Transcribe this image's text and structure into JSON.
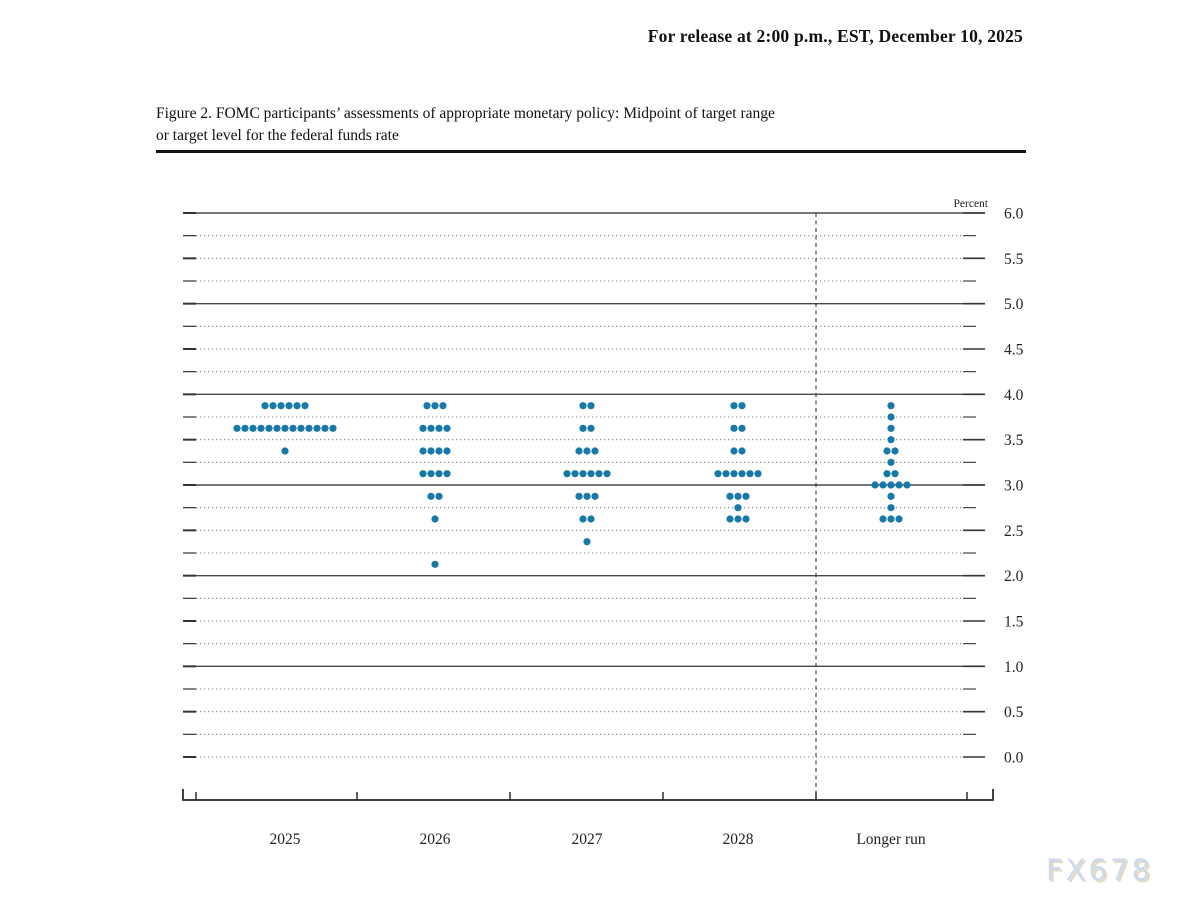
{
  "header": {
    "release_line": "For release at 2:00 p.m., EST, December 10, 2025"
  },
  "figure": {
    "caption_line1": "Figure 2. FOMC participants’ assessments of appropriate monetary policy: Midpoint of target range",
    "caption_line2": "or target level for the federal funds rate"
  },
  "watermark": {
    "text": "FX678"
  },
  "chart_data": {
    "type": "scatter",
    "title": "FOMC participants’ assessments of appropriate monetary policy: Midpoint of target range or target level for the federal funds rate",
    "y_axis": {
      "label": "Percent",
      "min": 0.0,
      "max": 6.0,
      "grid_step": 0.25,
      "label_step": 0.5,
      "tick_labels": [
        "6.0",
        "5.5",
        "5.0",
        "4.5",
        "4.0",
        "3.5",
        "3.0",
        "2.5",
        "2.0",
        "1.5",
        "1.0",
        "0.5",
        "0.0"
      ]
    },
    "x_categories": [
      "2025",
      "2026",
      "2027",
      "2028",
      "Longer run"
    ],
    "dot_color": "#1878a8",
    "grid_on": true,
    "legend": "none",
    "columns": [
      {
        "label": "2025",
        "dots": [
          {
            "rate": 3.875,
            "count": 6
          },
          {
            "rate": 3.625,
            "count": 13
          },
          {
            "rate": 3.375,
            "count": 1
          }
        ]
      },
      {
        "label": "2026",
        "dots": [
          {
            "rate": 3.875,
            "count": 3
          },
          {
            "rate": 3.625,
            "count": 4
          },
          {
            "rate": 3.375,
            "count": 4
          },
          {
            "rate": 3.125,
            "count": 4
          },
          {
            "rate": 2.875,
            "count": 2
          },
          {
            "rate": 2.625,
            "count": 1
          },
          {
            "rate": 2.125,
            "count": 1
          }
        ]
      },
      {
        "label": "2027",
        "dots": [
          {
            "rate": 3.875,
            "count": 2
          },
          {
            "rate": 3.625,
            "count": 2
          },
          {
            "rate": 3.375,
            "count": 3
          },
          {
            "rate": 3.125,
            "count": 6
          },
          {
            "rate": 2.875,
            "count": 3
          },
          {
            "rate": 2.625,
            "count": 2
          },
          {
            "rate": 2.375,
            "count": 1
          }
        ]
      },
      {
        "label": "2028",
        "dots": [
          {
            "rate": 3.875,
            "count": 2
          },
          {
            "rate": 3.625,
            "count": 2
          },
          {
            "rate": 3.375,
            "count": 2
          },
          {
            "rate": 3.125,
            "count": 6
          },
          {
            "rate": 2.875,
            "count": 3
          },
          {
            "rate": 2.75,
            "count": 1
          },
          {
            "rate": 2.625,
            "count": 3
          }
        ]
      },
      {
        "label": "Longer run",
        "dots": [
          {
            "rate": 3.875,
            "count": 1
          },
          {
            "rate": 3.75,
            "count": 1
          },
          {
            "rate": 3.625,
            "count": 1
          },
          {
            "rate": 3.5,
            "count": 1
          },
          {
            "rate": 3.375,
            "count": 2
          },
          {
            "rate": 3.25,
            "count": 1
          },
          {
            "rate": 3.125,
            "count": 2
          },
          {
            "rate": 3.0,
            "count": 5
          },
          {
            "rate": 2.875,
            "count": 1
          },
          {
            "rate": 2.75,
            "count": 1
          },
          {
            "rate": 2.625,
            "count": 3
          }
        ]
      }
    ]
  }
}
